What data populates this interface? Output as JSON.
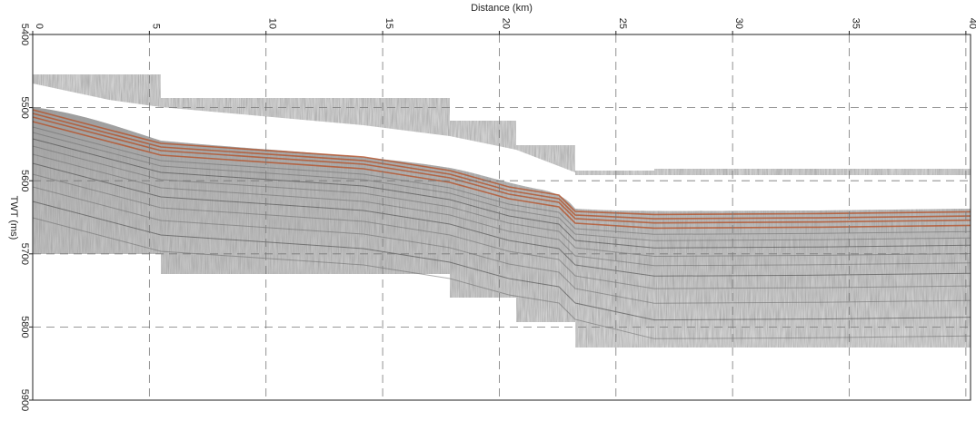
{
  "chart_data": {
    "type": "seismic-section",
    "xlabel": "Distance (km)",
    "ylabel": "TWT (ms)",
    "xlim": [
      0,
      40.2
    ],
    "xticks": [
      0,
      5,
      10,
      15,
      20,
      25,
      30,
      35,
      40
    ],
    "ylim": [
      5400,
      5900
    ],
    "yticks": [
      5400,
      5500,
      5600,
      5700,
      5800,
      5900
    ],
    "grid": true
  }
}
